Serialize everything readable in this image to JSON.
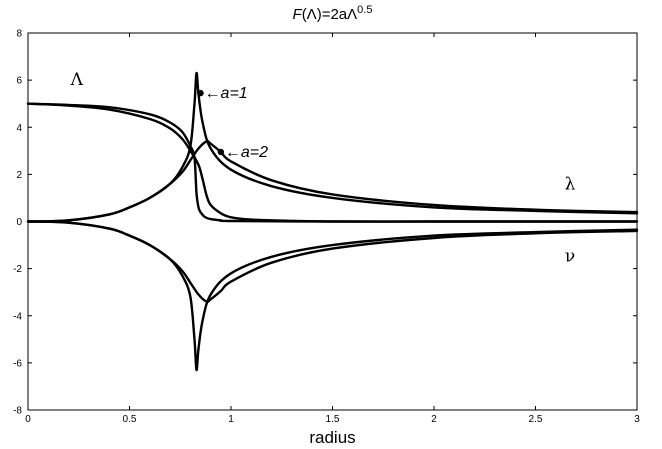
{
  "chart_data": {
    "type": "line",
    "title": "F(Λ)=2aΛ^0.5",
    "xlabel": "radius",
    "ylabel": "",
    "xlim": [
      0,
      3
    ],
    "ylim": [
      -8,
      8
    ],
    "grid": false,
    "x_ticks": [
      "0",
      "0.5",
      "1",
      "1.5",
      "2",
      "2.5",
      "3"
    ],
    "y_ticks": [
      "-8",
      "-6",
      "-4",
      "-2",
      "0",
      "2",
      "4",
      "6",
      "8"
    ],
    "series": [
      {
        "name": "Λ",
        "group": "a=1",
        "x": [
          0,
          0.2,
          0.4,
          0.6,
          0.7,
          0.76,
          0.8,
          0.82,
          0.83,
          0.84,
          0.85,
          0.87,
          0.9,
          0.95,
          1.0,
          1.5,
          2.0,
          2.5,
          3.0
        ],
        "y": [
          5.0,
          4.95,
          4.85,
          4.55,
          4.2,
          3.8,
          3.2,
          2.7,
          1.2,
          0.6,
          0.4,
          0.2,
          0.1,
          0.05,
          0.02,
          0,
          0,
          0,
          0
        ]
      },
      {
        "name": "Λ",
        "group": "a=2",
        "x": [
          0,
          0.2,
          0.4,
          0.6,
          0.7,
          0.76,
          0.8,
          0.84,
          0.86,
          0.88,
          0.9,
          0.95,
          1.0,
          1.1,
          1.3,
          1.5,
          2.0,
          2.5,
          3.0
        ],
        "y": [
          5.0,
          4.92,
          4.75,
          4.35,
          3.95,
          3.5,
          3.0,
          2.4,
          1.8,
          1.1,
          0.7,
          0.35,
          0.18,
          0.08,
          0.03,
          0,
          0,
          0,
          0
        ]
      },
      {
        "name": "λ",
        "group": "a=1",
        "x": [
          0,
          0.2,
          0.4,
          0.5,
          0.6,
          0.7,
          0.76,
          0.8,
          0.82,
          0.83,
          0.84,
          0.86,
          0.9,
          1.0,
          1.2,
          1.5,
          2.0,
          2.5,
          3.0
        ],
        "y": [
          0,
          0.05,
          0.3,
          0.6,
          1.0,
          1.6,
          2.3,
          3.2,
          5.0,
          6.3,
          5.4,
          4.2,
          3.1,
          2.2,
          1.5,
          1.0,
          0.6,
          0.45,
          0.35
        ]
      },
      {
        "name": "λ",
        "group": "a=2",
        "x": [
          0,
          0.2,
          0.4,
          0.5,
          0.6,
          0.7,
          0.76,
          0.8,
          0.84,
          0.88,
          0.9,
          0.95,
          1.0,
          1.2,
          1.5,
          2.0,
          2.5,
          3.0
        ],
        "y": [
          0,
          0.05,
          0.3,
          0.6,
          1.0,
          1.6,
          2.1,
          2.6,
          3.1,
          3.4,
          3.3,
          2.95,
          2.55,
          1.75,
          1.15,
          0.7,
          0.5,
          0.4
        ]
      },
      {
        "name": "ν",
        "group": "a=1",
        "x": [
          0,
          0.2,
          0.4,
          0.5,
          0.6,
          0.7,
          0.76,
          0.8,
          0.82,
          0.83,
          0.84,
          0.86,
          0.9,
          1.0,
          1.2,
          1.5,
          2.0,
          2.5,
          3.0
        ],
        "y": [
          0,
          -0.05,
          -0.3,
          -0.6,
          -1.0,
          -1.6,
          -2.3,
          -3.2,
          -5.0,
          -6.3,
          -5.4,
          -4.2,
          -3.1,
          -2.2,
          -1.5,
          -1.0,
          -0.6,
          -0.45,
          -0.35
        ]
      },
      {
        "name": "ν",
        "group": "a=2",
        "x": [
          0,
          0.2,
          0.4,
          0.5,
          0.6,
          0.7,
          0.76,
          0.8,
          0.84,
          0.88,
          0.9,
          0.95,
          1.0,
          1.2,
          1.5,
          2.0,
          2.5,
          3.0
        ],
        "y": [
          0,
          -0.05,
          -0.3,
          -0.6,
          -1.0,
          -1.6,
          -2.1,
          -2.6,
          -3.1,
          -3.4,
          -3.3,
          -2.95,
          -2.55,
          -1.75,
          -1.15,
          -0.7,
          -0.5,
          -0.4
        ]
      }
    ],
    "annotations": [
      {
        "text": "←a=1",
        "x": 0.85,
        "y": 5.45
      },
      {
        "text": "←a=2",
        "x": 0.95,
        "y": 2.95
      }
    ],
    "curve_labels": [
      {
        "text": "Λ",
        "x": 0.24,
        "y": 5.8
      },
      {
        "text": "λ",
        "x": 2.67,
        "y": 1.35
      },
      {
        "text": "ν",
        "x": 2.67,
        "y": -1.7
      }
    ]
  }
}
